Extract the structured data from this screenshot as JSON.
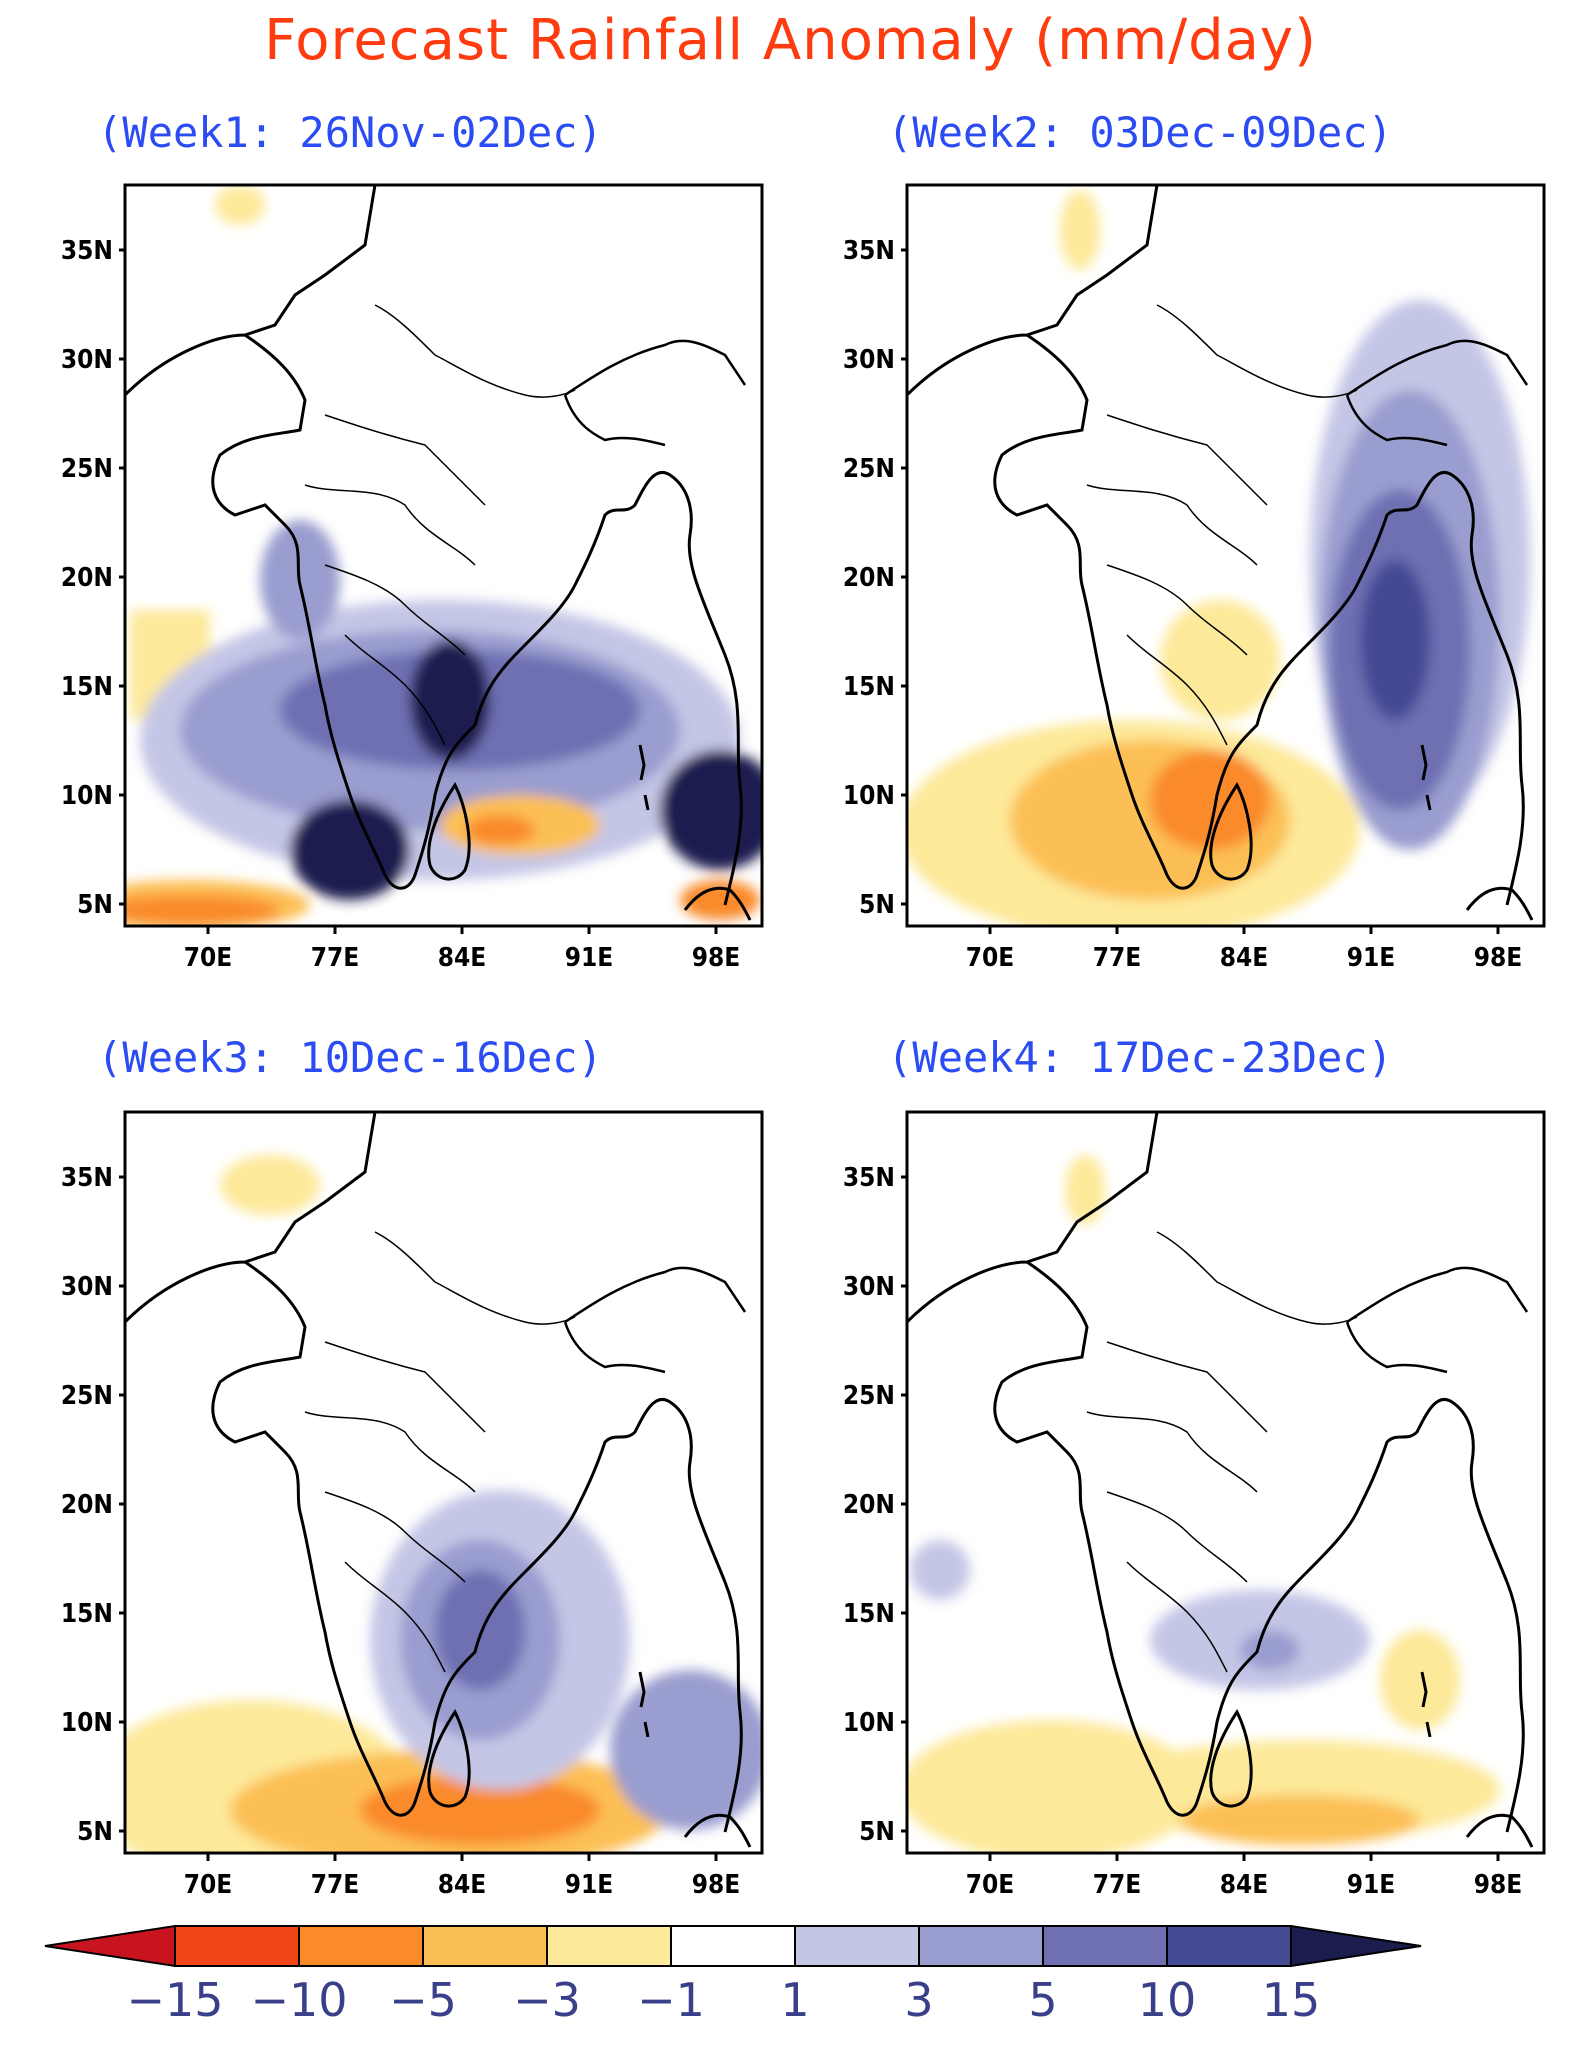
{
  "title": "Forecast Rainfall Anomaly (mm/day)",
  "panels": [
    {
      "id": "week1",
      "label": "(Week1: 26Nov-02Dec)"
    },
    {
      "id": "week2",
      "label": "(Week2: 03Dec-09Dec)"
    },
    {
      "id": "week3",
      "label": "(Week3: 10Dec-16Dec)"
    },
    {
      "id": "week4",
      "label": "(Week4: 17Dec-23Dec)"
    }
  ],
  "axes": {
    "lat_ticks": [
      "35N",
      "30N",
      "25N",
      "20N",
      "15N",
      "10N",
      "5N"
    ],
    "lon_ticks": [
      "70E",
      "77E",
      "84E",
      "91E",
      "98E"
    ]
  },
  "colorbar": {
    "tick_labels": [
      "-15",
      "-10",
      "-5",
      "-3",
      "-1",
      "1",
      "3",
      "5",
      "10",
      "15"
    ],
    "colors": [
      "#c8141e",
      "#f0461a",
      "#fa8a2a",
      "#fcbf55",
      "#fde99a",
      "#ffffff",
      "#c4c6e6",
      "#9a9dcf",
      "#6e70b2",
      "#454a94",
      "#1c1d4f"
    ]
  }
}
